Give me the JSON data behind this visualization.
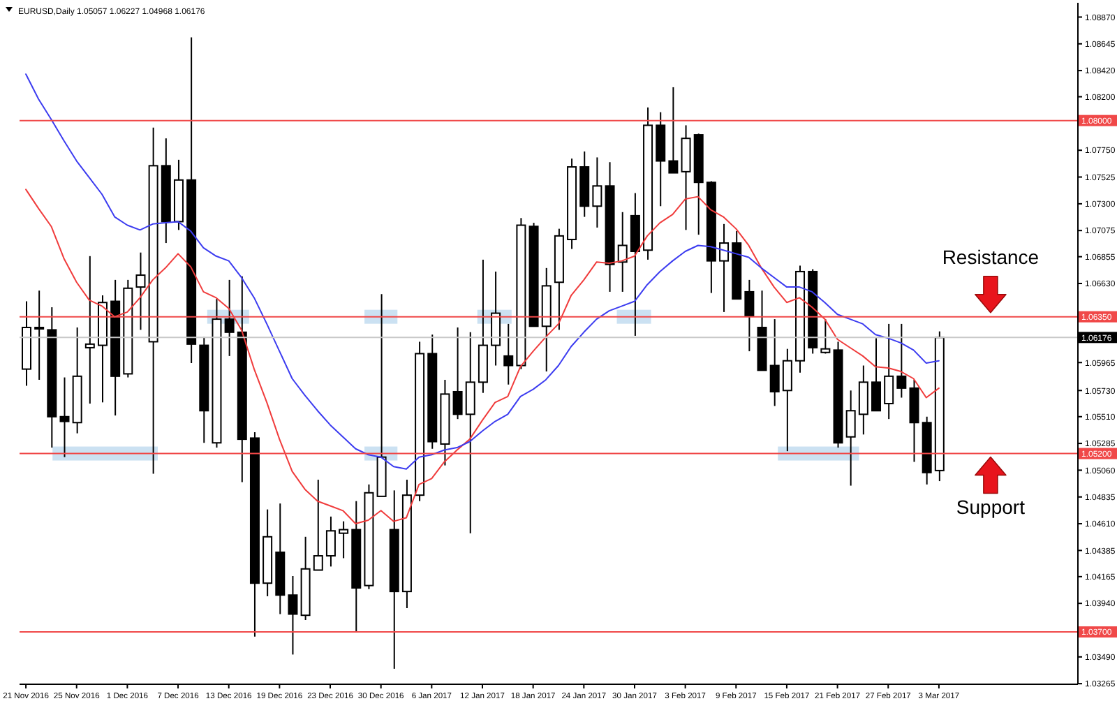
{
  "chart_data": {
    "type": "candlestick",
    "title": "EURUSD,Daily 1.05057 1.06227 1.04968 1.06176",
    "categories": [
      "21 Nov 2016",
      null,
      null,
      null,
      "25 Nov 2016",
      null,
      null,
      null,
      "1 Dec 2016",
      null,
      null,
      null,
      "7 Dec 2016",
      null,
      null,
      null,
      "13 Dec 2016",
      null,
      null,
      null,
      "19 Dec 2016",
      null,
      null,
      null,
      "23 Dec 2016",
      null,
      null,
      null,
      "30 Dec 2016",
      null,
      null,
      null,
      "6 Jan 2017",
      null,
      null,
      null,
      "12 Jan 2017",
      null,
      null,
      null,
      "18 Jan 2017",
      null,
      null,
      null,
      "24 Jan 2017",
      null,
      null,
      null,
      "30 Jan 2017",
      null,
      null,
      null,
      "3 Feb 2017",
      null,
      null,
      null,
      "9 Feb 2017",
      null,
      null,
      null,
      "15 Feb 2017",
      null,
      null,
      null,
      "21 Feb 2017",
      null,
      null,
      null,
      "27 Feb 2017",
      null,
      null,
      null,
      "3 Mar 2017"
    ],
    "ohlc": [
      [
        1.0591,
        1.0648,
        1.0577,
        1.0626
      ],
      [
        1.0626,
        1.0657,
        1.0582,
        1.0625
      ],
      [
        1.0624,
        1.0643,
        1.0525,
        1.0551
      ],
      [
        1.0551,
        1.0584,
        1.0517,
        1.0547
      ],
      [
        1.0546,
        1.0626,
        1.0537,
        1.0585
      ],
      [
        1.0609,
        1.0686,
        1.0562,
        1.0612
      ],
      [
        1.0611,
        1.0653,
        1.0563,
        1.0647
      ],
      [
        1.0648,
        1.0666,
        1.0552,
        1.0585
      ],
      [
        1.0587,
        1.0666,
        1.0584,
        1.0659
      ],
      [
        1.066,
        1.0689,
        1.0624,
        1.067
      ],
      [
        1.0614,
        1.0794,
        1.0503,
        1.0762
      ],
      [
        1.0762,
        1.0785,
        1.0697,
        1.0715
      ],
      [
        1.0715,
        1.0767,
        1.0708,
        1.075
      ],
      [
        1.075,
        1.087,
        1.0596,
        1.0612
      ],
      [
        1.0611,
        1.0618,
        1.0529,
        1.0556
      ],
      [
        1.0529,
        1.065,
        1.0525,
        1.0633
      ],
      [
        1.0633,
        1.0666,
        1.0602,
        1.0622
      ],
      [
        1.0622,
        1.0669,
        1.0496,
        1.0532
      ],
      [
        1.0533,
        1.0538,
        1.0366,
        1.0411
      ],
      [
        1.0411,
        1.0473,
        1.04,
        1.045
      ],
      [
        1.0437,
        1.0478,
        1.0385,
        1.0401
      ],
      [
        1.0401,
        1.0417,
        1.0351,
        1.0385
      ],
      [
        1.0384,
        1.045,
        1.038,
        1.0423
      ],
      [
        1.0422,
        1.0498,
        1.0422,
        1.0434
      ],
      [
        1.0434,
        1.0467,
        1.0425,
        1.0455
      ],
      [
        1.0453,
        1.0463,
        1.0432,
        1.0456
      ],
      [
        1.0456,
        1.048,
        1.037,
        1.0407
      ],
      [
        1.0409,
        1.0494,
        1.0406,
        1.0487
      ],
      [
        1.0484,
        1.0654,
        1.0484,
        1.0517
      ],
      [
        1.0456,
        1.0489,
        1.0339,
        1.0404
      ],
      [
        1.0404,
        1.0498,
        1.039,
        1.0485
      ],
      [
        1.0485,
        1.0614,
        1.048,
        1.0604
      ],
      [
        1.0604,
        1.062,
        1.0524,
        1.053
      ],
      [
        1.0528,
        1.0582,
        1.051,
        1.057
      ],
      [
        1.0572,
        1.0626,
        1.0549,
        1.0553
      ],
      [
        1.0553,
        1.0622,
        1.0453,
        1.058
      ],
      [
        1.058,
        1.0683,
        1.0571,
        1.0611
      ],
      [
        1.0611,
        1.0673,
        1.0594,
        1.0638
      ],
      [
        1.0602,
        1.0629,
        1.0578,
        1.0594
      ],
      [
        1.0594,
        1.0718,
        1.0591,
        1.0712
      ],
      [
        1.0711,
        1.0714,
        1.0627,
        1.0627
      ],
      [
        1.0627,
        1.0676,
        1.0589,
        1.0661
      ],
      [
        1.0664,
        1.0709,
        1.0624,
        1.0703
      ],
      [
        1.07,
        1.0768,
        1.0692,
        1.0761
      ],
      [
        1.0761,
        1.0774,
        1.0719,
        1.0728
      ],
      [
        1.0728,
        1.0769,
        1.071,
        1.0745
      ],
      [
        1.0745,
        1.0765,
        1.0656,
        1.0679
      ],
      [
        1.0681,
        1.0723,
        1.0656,
        1.0695
      ],
      [
        1.072,
        1.0739,
        1.0619,
        1.069
      ],
      [
        1.0691,
        1.0811,
        1.0683,
        1.0796
      ],
      [
        1.0796,
        1.0807,
        1.0728,
        1.0766
      ],
      [
        1.0766,
        1.0828,
        1.0756,
        1.0756
      ],
      [
        1.0757,
        1.0796,
        1.0708,
        1.0785
      ],
      [
        1.0788,
        1.0789,
        1.0704,
        1.0748
      ],
      [
        1.0748,
        1.0749,
        1.0655,
        1.0682
      ],
      [
        1.0682,
        1.0713,
        1.0639,
        1.0697
      ],
      [
        1.0697,
        1.0707,
        1.065,
        1.065
      ],
      [
        1.0656,
        1.0666,
        1.0606,
        1.0636
      ],
      [
        1.0626,
        1.0657,
        1.059,
        1.059
      ],
      [
        1.0594,
        1.0633,
        1.056,
        1.0572
      ],
      [
        1.0573,
        1.0608,
        1.0522,
        1.0598
      ],
      [
        1.0598,
        1.0678,
        1.0588,
        1.0673
      ],
      [
        1.0673,
        1.0675,
        1.0604,
        1.0609
      ],
      [
        1.0605,
        1.0633,
        1.0604,
        1.0608
      ],
      [
        1.0607,
        1.0614,
        1.0525,
        1.0529
      ],
      [
        1.0534,
        1.0573,
        1.0493,
        1.0556
      ],
      [
        1.0553,
        1.0594,
        1.0536,
        1.058
      ],
      [
        1.058,
        1.0617,
        1.0556,
        1.0556
      ],
      [
        1.0562,
        1.0629,
        1.0549,
        1.0585
      ],
      [
        1.0585,
        1.0629,
        1.0567,
        1.0575
      ],
      [
        1.0575,
        1.0582,
        1.0513,
        1.0546
      ],
      [
        1.0546,
        1.0551,
        1.0494,
        1.0504
      ],
      [
        1.05057,
        1.06227,
        1.04968,
        1.06176
      ]
    ],
    "series": [
      {
        "type": "line",
        "color": "#f03c3c",
        "values": [
          1.0742,
          1.0726,
          1.0711,
          1.0684,
          1.0664,
          1.0649,
          1.0644,
          1.0635,
          1.0639,
          1.0651,
          1.0666,
          1.0676,
          1.0688,
          1.0677,
          1.0656,
          1.0651,
          1.0642,
          1.0624,
          1.0591,
          1.0563,
          1.0532,
          1.0505,
          1.049,
          1.048,
          1.0476,
          1.0472,
          1.0461,
          1.0464,
          1.0472,
          1.0463,
          1.0466,
          1.0494,
          1.0499,
          1.0513,
          1.0523,
          1.0532,
          1.0548,
          1.0563,
          1.0568,
          1.0593,
          1.0606,
          1.0618,
          1.0629,
          1.0653,
          1.0666,
          1.0681,
          1.068,
          1.0682,
          1.0686,
          1.0703,
          1.0714,
          1.0721,
          1.0734,
          1.0736,
          1.0725,
          1.0719,
          1.0709,
          1.0695,
          1.0676,
          1.066,
          1.0647,
          1.0651,
          1.0643,
          1.0633,
          1.0616,
          1.0609,
          1.0602,
          1.0593,
          1.0592,
          1.0589,
          1.0583,
          1.0567,
          1.0575
        ]
      },
      {
        "type": "line",
        "color": "#3c3cf0",
        "values": [
          1.0839,
          1.0818,
          1.0801,
          1.0783,
          1.0766,
          1.0752,
          1.0738,
          1.0719,
          1.0712,
          1.0708,
          1.0713,
          1.0714,
          1.0715,
          1.0707,
          1.0693,
          1.0686,
          1.0682,
          1.0668,
          1.0651,
          1.0629,
          1.0606,
          1.0583,
          1.0569,
          1.0556,
          1.0544,
          1.0534,
          1.0524,
          1.0519,
          1.0517,
          1.0509,
          1.0507,
          1.0517,
          1.0519,
          1.0523,
          1.0525,
          1.053,
          1.0539,
          1.0547,
          1.0553,
          1.0568,
          1.0574,
          1.0582,
          1.0594,
          1.061,
          1.0622,
          1.0633,
          1.064,
          1.0644,
          1.0648,
          1.0662,
          1.0673,
          1.0682,
          1.069,
          1.0695,
          1.0694,
          1.0691,
          1.0688,
          1.0685,
          1.0676,
          1.0668,
          1.066,
          1.066,
          1.0656,
          1.0647,
          1.0637,
          1.0633,
          1.0629,
          1.062,
          1.0617,
          1.0613,
          1.0607,
          1.0596,
          1.0598
        ]
      }
    ],
    "ylim": [
      1.0326,
      1.0899
    ],
    "yticks": [
      {
        "value": 1.0887,
        "label": "1.08870"
      },
      {
        "value": 1.08645,
        "label": "1.08645"
      },
      {
        "value": 1.0842,
        "label": "1.08420"
      },
      {
        "value": 1.082,
        "label": "1.08200"
      },
      {
        "value": 1.0775,
        "label": "1.07750"
      },
      {
        "value": 1.07525,
        "label": "1.07525"
      },
      {
        "value": 1.073,
        "label": "1.07300"
      },
      {
        "value": 1.07075,
        "label": "1.07075"
      },
      {
        "value": 1.06855,
        "label": "1.06855"
      },
      {
        "value": 1.0663,
        "label": "1.06630"
      },
      {
        "value": 1.05965,
        "label": "1.05965"
      },
      {
        "value": 1.0573,
        "label": "1.05730"
      },
      {
        "value": 1.0551,
        "label": "1.05510"
      },
      {
        "value": 1.05285,
        "label": "1.05285"
      },
      {
        "value": 1.0506,
        "label": "1.05060"
      },
      {
        "value": 1.04835,
        "label": "1.04835"
      },
      {
        "value": 1.0461,
        "label": "1.04610"
      },
      {
        "value": 1.04385,
        "label": "1.04385"
      },
      {
        "value": 1.04165,
        "label": "1.04165"
      },
      {
        "value": 1.0394,
        "label": "1.03940"
      },
      {
        "value": 1.0349,
        "label": "1.03490"
      },
      {
        "value": 1.03265,
        "label": "1.03265"
      }
    ],
    "ref_lines": [
      {
        "axis": "y",
        "value": 1.08,
        "label": "1.08000",
        "color": "#f04848"
      },
      {
        "axis": "y",
        "value": 1.0635,
        "label": "1.06350",
        "color": "#f04848"
      },
      {
        "axis": "y",
        "value": 1.06176,
        "label": "1.06176",
        "color": "#c8c8c8"
      },
      {
        "axis": "y",
        "value": 1.052,
        "label": "1.05200",
        "color": "#f04848"
      },
      {
        "axis": "y",
        "value": 1.037,
        "label": "1.03700",
        "color": "#f04848"
      }
    ],
    "annotations": [
      {
        "text": "Resistance",
        "y": 1.0635
      },
      {
        "text": "Support",
        "y": 1.052
      }
    ]
  }
}
